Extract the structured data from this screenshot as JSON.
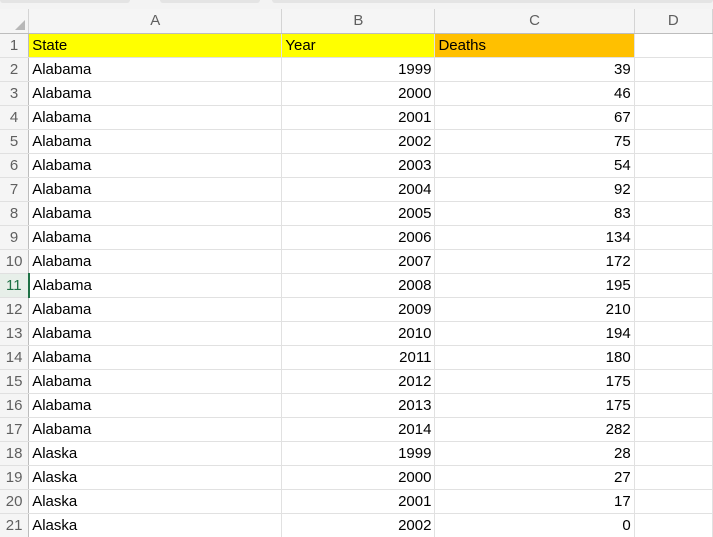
{
  "columns": [
    "A",
    "B",
    "C",
    "D"
  ],
  "header_row": {
    "row_number": "1",
    "cells": [
      "State",
      "Year",
      "Deaths",
      ""
    ]
  },
  "header_colors": {
    "yellow": "#ffff00",
    "orange": "#ffc000"
  },
  "active_row": "11",
  "rows": [
    {
      "n": "2",
      "state": "Alabama",
      "year": "1999",
      "deaths": "39"
    },
    {
      "n": "3",
      "state": "Alabama",
      "year": "2000",
      "deaths": "46"
    },
    {
      "n": "4",
      "state": "Alabama",
      "year": "2001",
      "deaths": "67"
    },
    {
      "n": "5",
      "state": "Alabama",
      "year": "2002",
      "deaths": "75"
    },
    {
      "n": "6",
      "state": "Alabama",
      "year": "2003",
      "deaths": "54"
    },
    {
      "n": "7",
      "state": "Alabama",
      "year": "2004",
      "deaths": "92"
    },
    {
      "n": "8",
      "state": "Alabama",
      "year": "2005",
      "deaths": "83"
    },
    {
      "n": "9",
      "state": "Alabama",
      "year": "2006",
      "deaths": "134"
    },
    {
      "n": "10",
      "state": "Alabama",
      "year": "2007",
      "deaths": "172"
    },
    {
      "n": "11",
      "state": "Alabama",
      "year": "2008",
      "deaths": "195"
    },
    {
      "n": "12",
      "state": "Alabama",
      "year": "2009",
      "deaths": "210"
    },
    {
      "n": "13",
      "state": "Alabama",
      "year": "2010",
      "deaths": "194"
    },
    {
      "n": "14",
      "state": "Alabama",
      "year": "2011",
      "deaths": "180"
    },
    {
      "n": "15",
      "state": "Alabama",
      "year": "2012",
      "deaths": "175"
    },
    {
      "n": "16",
      "state": "Alabama",
      "year": "2013",
      "deaths": "175"
    },
    {
      "n": "17",
      "state": "Alabama",
      "year": "2014",
      "deaths": "282"
    },
    {
      "n": "18",
      "state": "Alaska",
      "year": "1999",
      "deaths": "28"
    },
    {
      "n": "19",
      "state": "Alaska",
      "year": "2000",
      "deaths": "27"
    },
    {
      "n": "20",
      "state": "Alaska",
      "year": "2001",
      "deaths": "17"
    },
    {
      "n": "21",
      "state": "Alaska",
      "year": "2002",
      "deaths": "0"
    }
  ]
}
